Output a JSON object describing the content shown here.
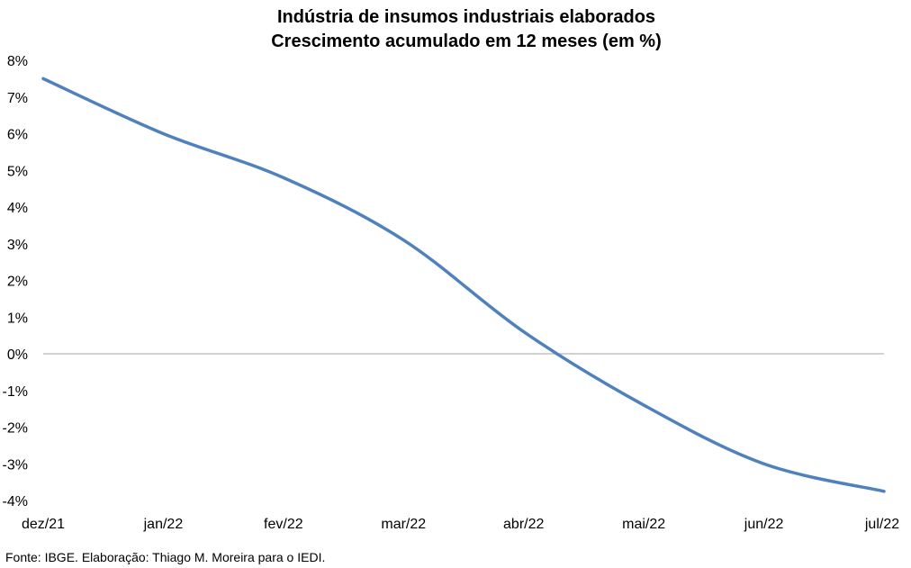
{
  "chart_data": {
    "type": "line",
    "title": "Indústria de insumos industriais elaborados",
    "subtitle": "Crescimento acumulado em 12 meses (em %)",
    "xlabel": "",
    "ylabel": "",
    "categories": [
      "dez/21",
      "jan/22",
      "fev/22",
      "mar/22",
      "abr/22",
      "mai/22",
      "jun/22",
      "jul/22"
    ],
    "series": [
      {
        "values": [
          7.5,
          6.0,
          4.8,
          3.1,
          0.6,
          -1.4,
          -3.0,
          -3.75
        ]
      }
    ],
    "ylim": [
      -4,
      8
    ],
    "yticks": [
      -4,
      -3,
      -2,
      -1,
      0,
      1,
      2,
      3,
      4,
      5,
      6,
      7,
      8
    ],
    "ytick_suffix": "%",
    "grid": false,
    "legend": "none",
    "colors": {
      "line": "#4f81bd",
      "zero_line": "#a6a6a6"
    }
  },
  "source": "Fonte: IBGE. Elaboração: Thiago M. Moreira para o IEDI."
}
